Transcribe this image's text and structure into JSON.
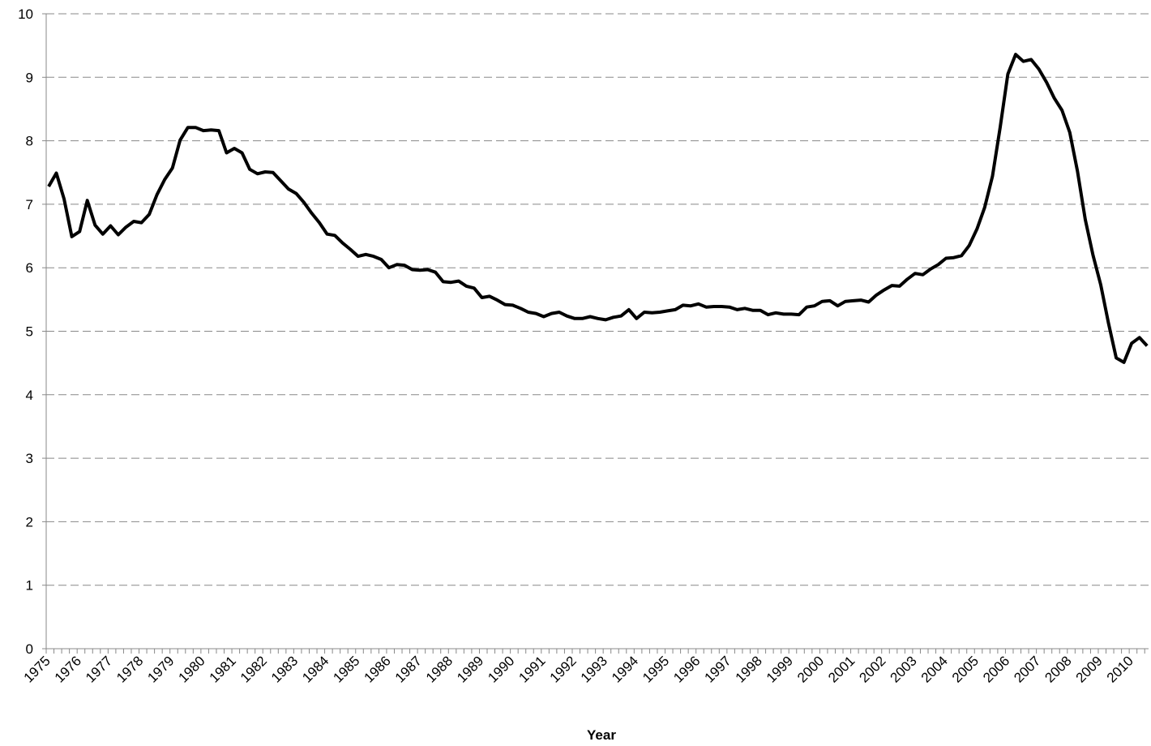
{
  "chart_data": {
    "type": "line",
    "x_label": "Year",
    "categories": [
      "1975",
      null,
      null,
      null,
      "1976",
      null,
      null,
      null,
      "1977",
      null,
      null,
      null,
      "1978",
      null,
      null,
      null,
      "1979",
      null,
      null,
      null,
      "1980",
      null,
      null,
      null,
      "1981",
      null,
      null,
      null,
      "1982",
      null,
      null,
      null,
      "1983",
      null,
      null,
      null,
      "1984",
      null,
      null,
      null,
      "1985",
      null,
      null,
      null,
      "1986",
      null,
      null,
      null,
      "1987",
      null,
      null,
      null,
      "1988",
      null,
      null,
      null,
      "1989",
      null,
      null,
      null,
      "1990",
      null,
      null,
      null,
      "1991",
      null,
      null,
      null,
      "1992",
      null,
      null,
      null,
      "1993",
      null,
      null,
      null,
      "1994",
      null,
      null,
      null,
      "1995",
      null,
      null,
      null,
      "1996",
      null,
      null,
      null,
      "1997",
      null,
      null,
      null,
      "1998",
      null,
      null,
      null,
      "1999",
      null,
      null,
      null,
      "2000",
      null,
      null,
      null,
      "2001",
      null,
      null,
      null,
      "2002",
      null,
      null,
      null,
      "2003",
      null,
      null,
      null,
      "2004",
      null,
      null,
      null,
      "2005",
      null,
      null,
      null,
      "2006",
      null,
      null,
      null,
      "2007",
      null,
      null,
      null,
      "2008",
      null,
      null,
      null,
      "2009",
      null,
      null,
      null,
      "2010",
      null,
      null
    ],
    "values": [
      7.28,
      7.49,
      7.08,
      6.49,
      6.57,
      7.06,
      6.67,
      6.53,
      6.66,
      6.52,
      6.64,
      6.73,
      6.71,
      6.84,
      7.15,
      7.39,
      7.57,
      8.01,
      8.21,
      8.21,
      8.16,
      8.17,
      8.16,
      7.81,
      7.88,
      7.81,
      7.55,
      7.48,
      7.51,
      7.5,
      7.37,
      7.24,
      7.17,
      7.03,
      6.86,
      6.71,
      6.53,
      6.51,
      6.39,
      6.29,
      6.18,
      6.21,
      6.18,
      6.13,
      6.0,
      6.05,
      6.04,
      5.97,
      5.96,
      5.97,
      5.93,
      5.78,
      5.77,
      5.79,
      5.71,
      5.68,
      5.53,
      5.55,
      5.49,
      5.42,
      5.41,
      5.36,
      5.3,
      5.28,
      5.23,
      5.28,
      5.3,
      5.24,
      5.2,
      5.2,
      5.23,
      5.2,
      5.18,
      5.22,
      5.24,
      5.34,
      5.2,
      5.3,
      5.29,
      5.3,
      5.32,
      5.34,
      5.41,
      5.4,
      5.43,
      5.38,
      5.39,
      5.39,
      5.38,
      5.34,
      5.36,
      5.33,
      5.33,
      5.26,
      5.29,
      5.27,
      5.27,
      5.26,
      5.38,
      5.4,
      5.47,
      5.48,
      5.4,
      5.47,
      5.48,
      5.49,
      5.46,
      5.57,
      5.65,
      5.72,
      5.71,
      5.82,
      5.91,
      5.89,
      5.98,
      6.05,
      6.15,
      6.16,
      6.19,
      6.35,
      6.61,
      6.95,
      7.44,
      8.21,
      9.05,
      9.36,
      9.25,
      9.28,
      9.13,
      8.92,
      8.67,
      8.48,
      8.13,
      7.52,
      6.76,
      6.2,
      5.73,
      5.13,
      4.58,
      4.51,
      4.81,
      4.9,
      4.77
    ],
    "color": "#000000",
    "ylim": [
      0,
      10
    ],
    "yticks": [
      0,
      1,
      2,
      3,
      4,
      5,
      6,
      7,
      8,
      9,
      10
    ],
    "grid": true
  }
}
